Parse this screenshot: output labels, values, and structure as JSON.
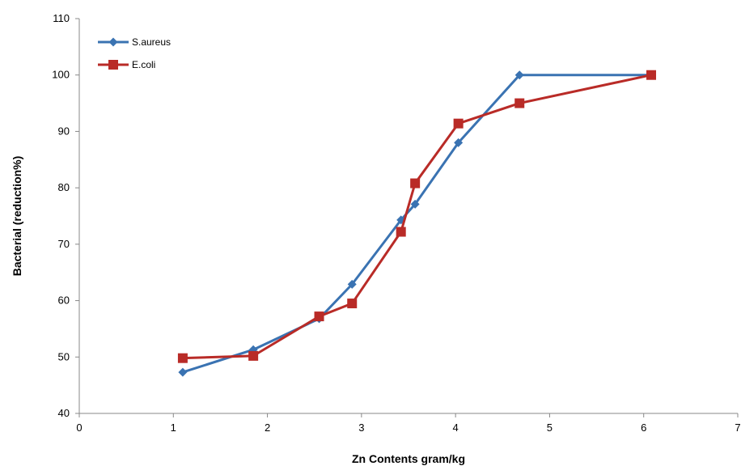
{
  "chart_data": {
    "type": "line",
    "title": "",
    "xlabel": "Zn  Contents gram/kg",
    "ylabel": "Bacterial (reduction%)",
    "xlim": [
      0,
      7
    ],
    "ylim": [
      40,
      110
    ],
    "xticks": [
      0,
      1,
      2,
      3,
      4,
      5,
      6,
      7
    ],
    "yticks": [
      40,
      50,
      60,
      70,
      80,
      90,
      100,
      110
    ],
    "grid": false,
    "legend_position": "top-left",
    "series": [
      {
        "name": "S.aureus",
        "color": "#3A73B2",
        "marker": "diamond",
        "x": [
          1.1,
          1.85,
          2.55,
          2.9,
          3.42,
          3.57,
          4.03,
          4.68,
          6.08
        ],
        "y": [
          47.3,
          51.3,
          56.8,
          62.9,
          74.3,
          77.1,
          88.0,
          100.0,
          100.0
        ]
      },
      {
        "name": "E.coli",
        "color": "#B92B27",
        "marker": "square",
        "x": [
          1.1,
          1.85,
          2.55,
          2.9,
          3.42,
          3.57,
          4.03,
          4.68,
          6.08
        ],
        "y": [
          49.8,
          50.2,
          57.2,
          59.5,
          72.2,
          80.8,
          91.4,
          95.0,
          100.0
        ]
      }
    ]
  }
}
